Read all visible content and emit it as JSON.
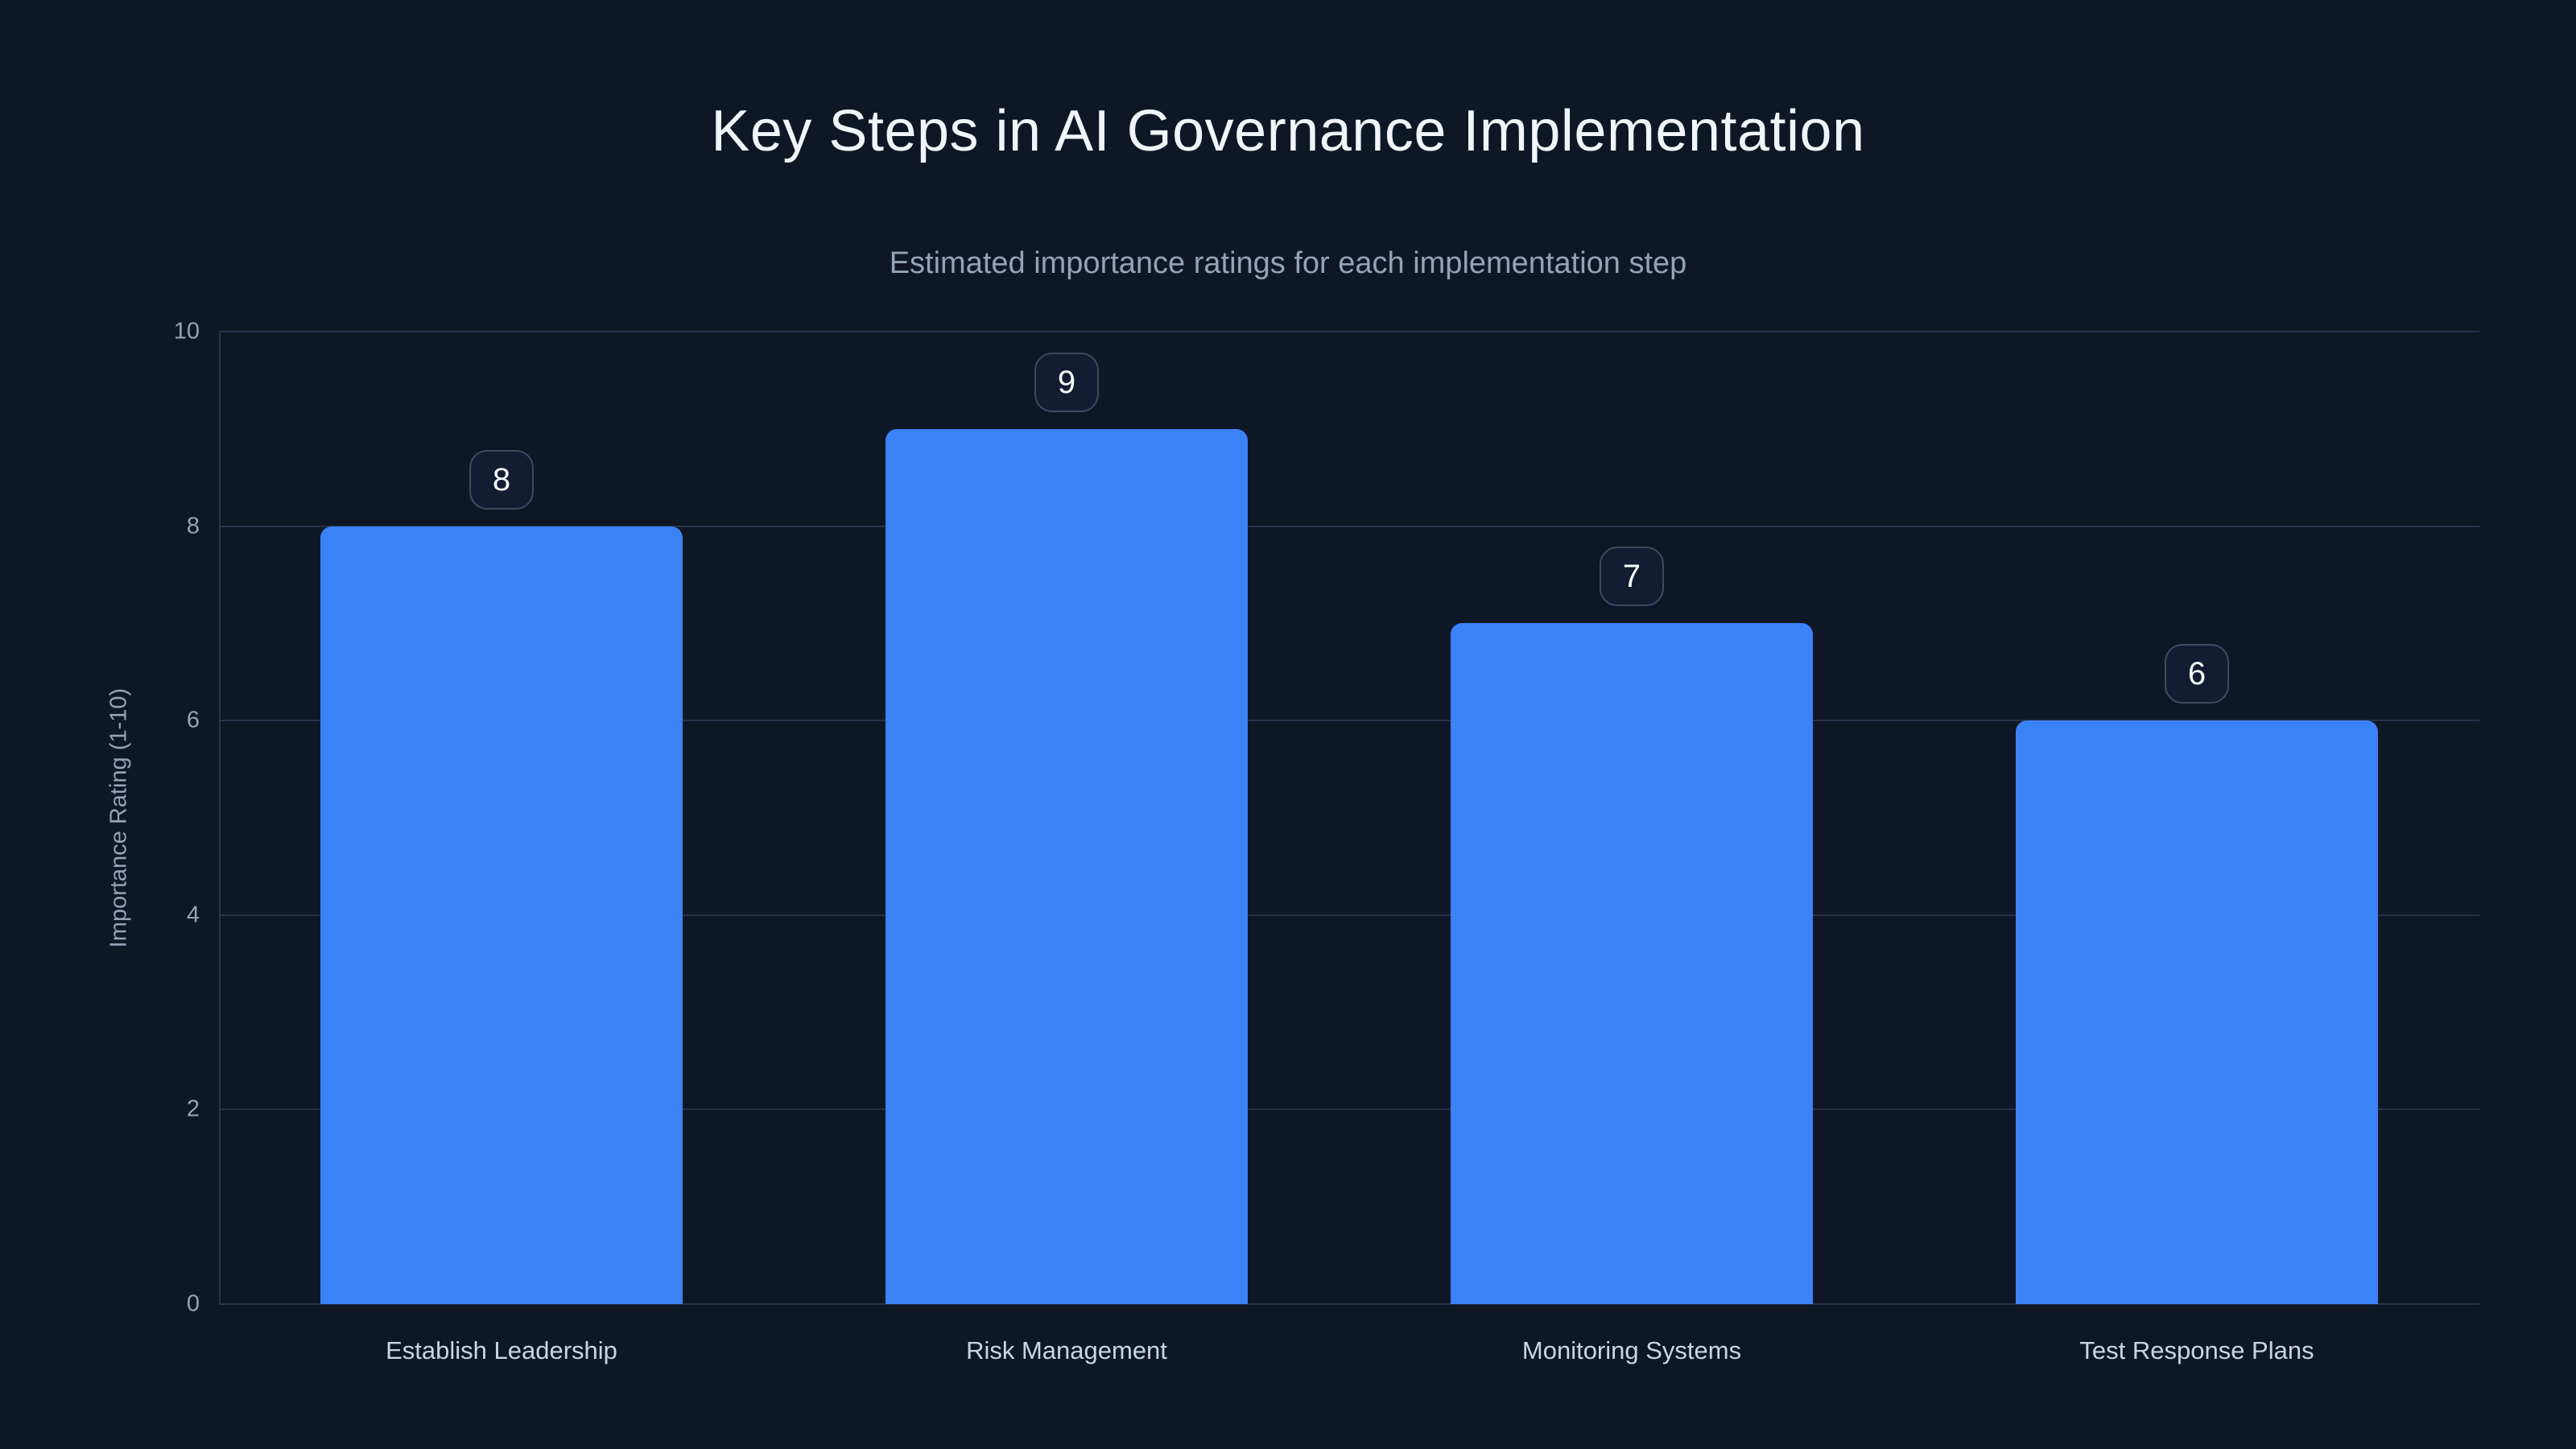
{
  "chart_data": {
    "type": "bar",
    "title": "Key Steps in AI Governance Implementation",
    "subtitle": "Estimated importance ratings for each implementation step",
    "categories": [
      "Establish Leadership",
      "Risk Management",
      "Monitoring Systems",
      "Test Response Plans"
    ],
    "values": [
      8,
      9,
      7,
      6
    ],
    "value_labels": [
      "8",
      "9",
      "7",
      "6"
    ],
    "xlabel": "",
    "ylabel": "Importance Rating (1-10)",
    "ylim": [
      0,
      10
    ],
    "yticks": [
      0,
      2,
      4,
      6,
      8,
      10
    ],
    "grid": true,
    "legend": false
  },
  "colors": {
    "background": "#0f1726",
    "bar_fill": "#3b82f6",
    "title_text": "#f1f5f9",
    "subtitle_text": "#94a3b8",
    "axis_text": "#94a3b8",
    "x_label_text": "#cbd5e1",
    "gridline": "#27324a",
    "badge_border": "#3e4a61",
    "badge_background": "#131c30",
    "badge_text": "#f8fafc"
  }
}
